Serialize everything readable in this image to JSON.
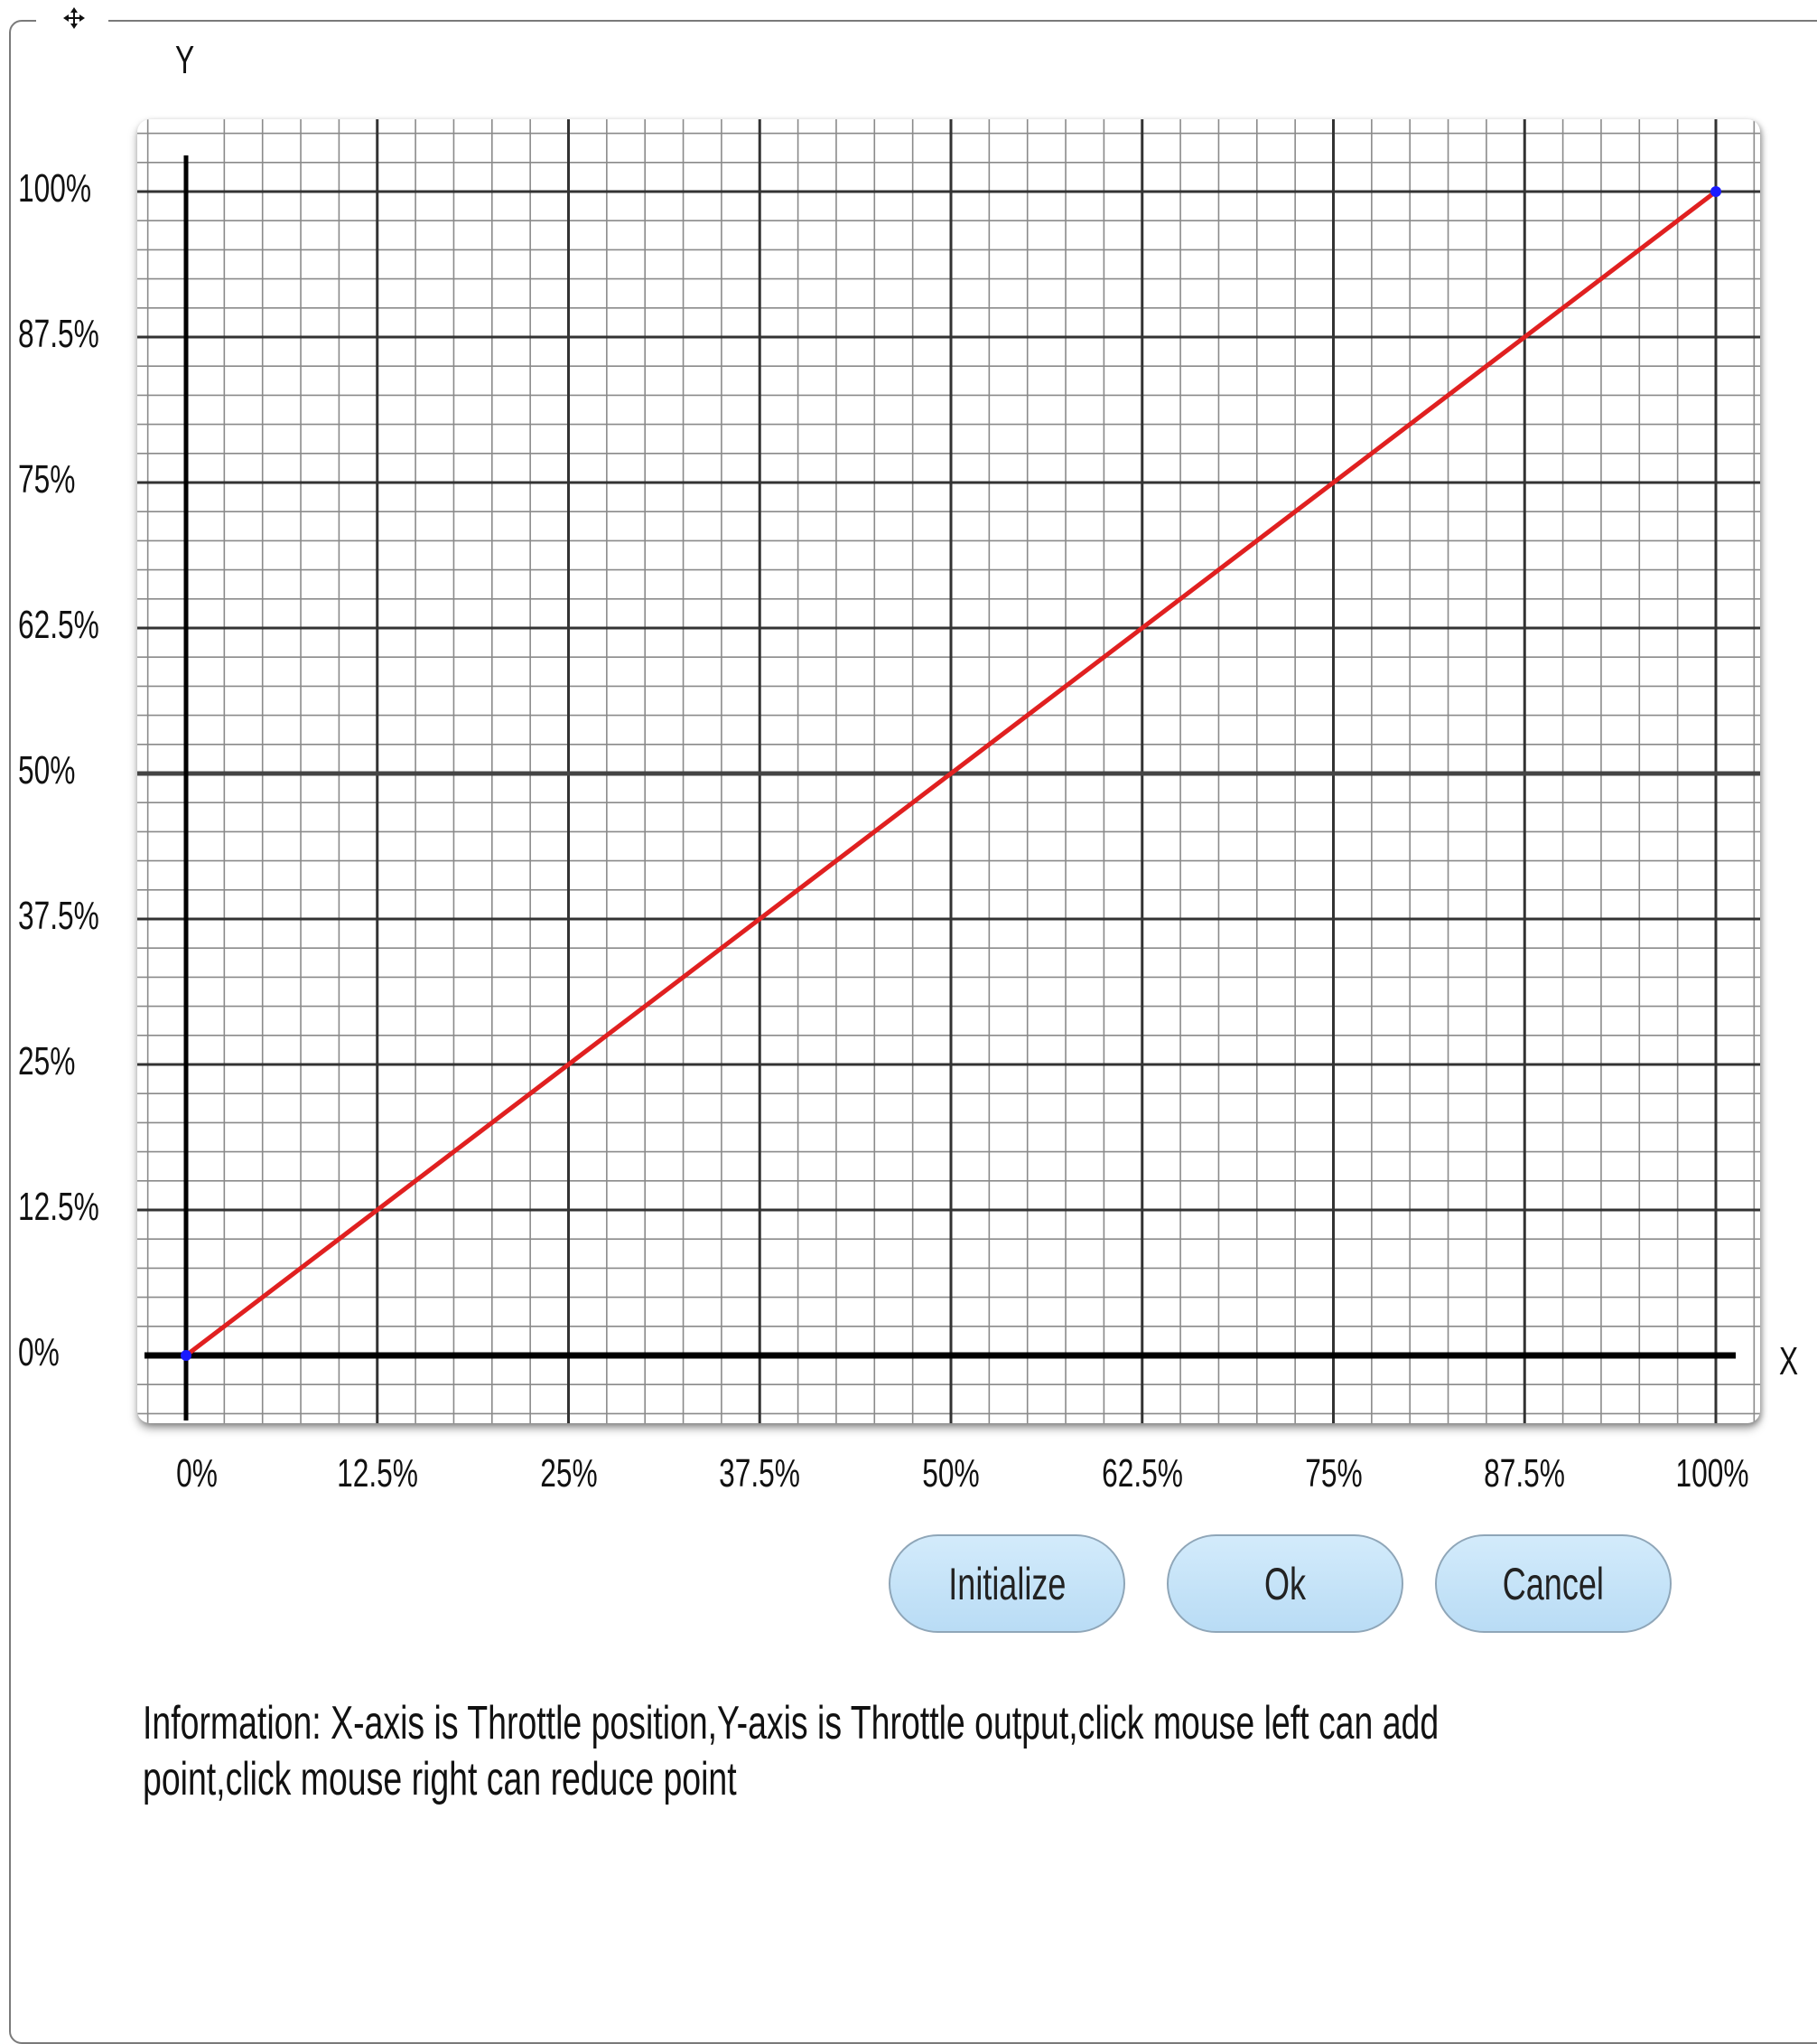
{
  "axes": {
    "y_title": "Y",
    "x_title": "X"
  },
  "chart_data": {
    "type": "line",
    "x_ticks": [
      "0%",
      "12.5%",
      "25%",
      "37.5%",
      "50%",
      "62.5%",
      "75%",
      "87.5%",
      "100%"
    ],
    "y_ticks": [
      "100%",
      "87.5%",
      "75%",
      "62.5%",
      "50%",
      "37.5%",
      "25%",
      "12.5%",
      "0%"
    ],
    "xlim": [
      0,
      100
    ],
    "ylim": [
      0,
      100
    ],
    "grid": true,
    "series": [
      {
        "x": [
          0,
          100
        ],
        "y": [
          0,
          100
        ],
        "color": "#e02020",
        "point_color": "#1a1aff"
      }
    ]
  },
  "buttons": {
    "initialize": "Initialize",
    "ok": "Ok",
    "cancel": "Cancel"
  },
  "info_text": "Information: X-axis is Throttle position,Y-axis is Throttle output,click mouse left can add point,click mouse right can reduce point"
}
